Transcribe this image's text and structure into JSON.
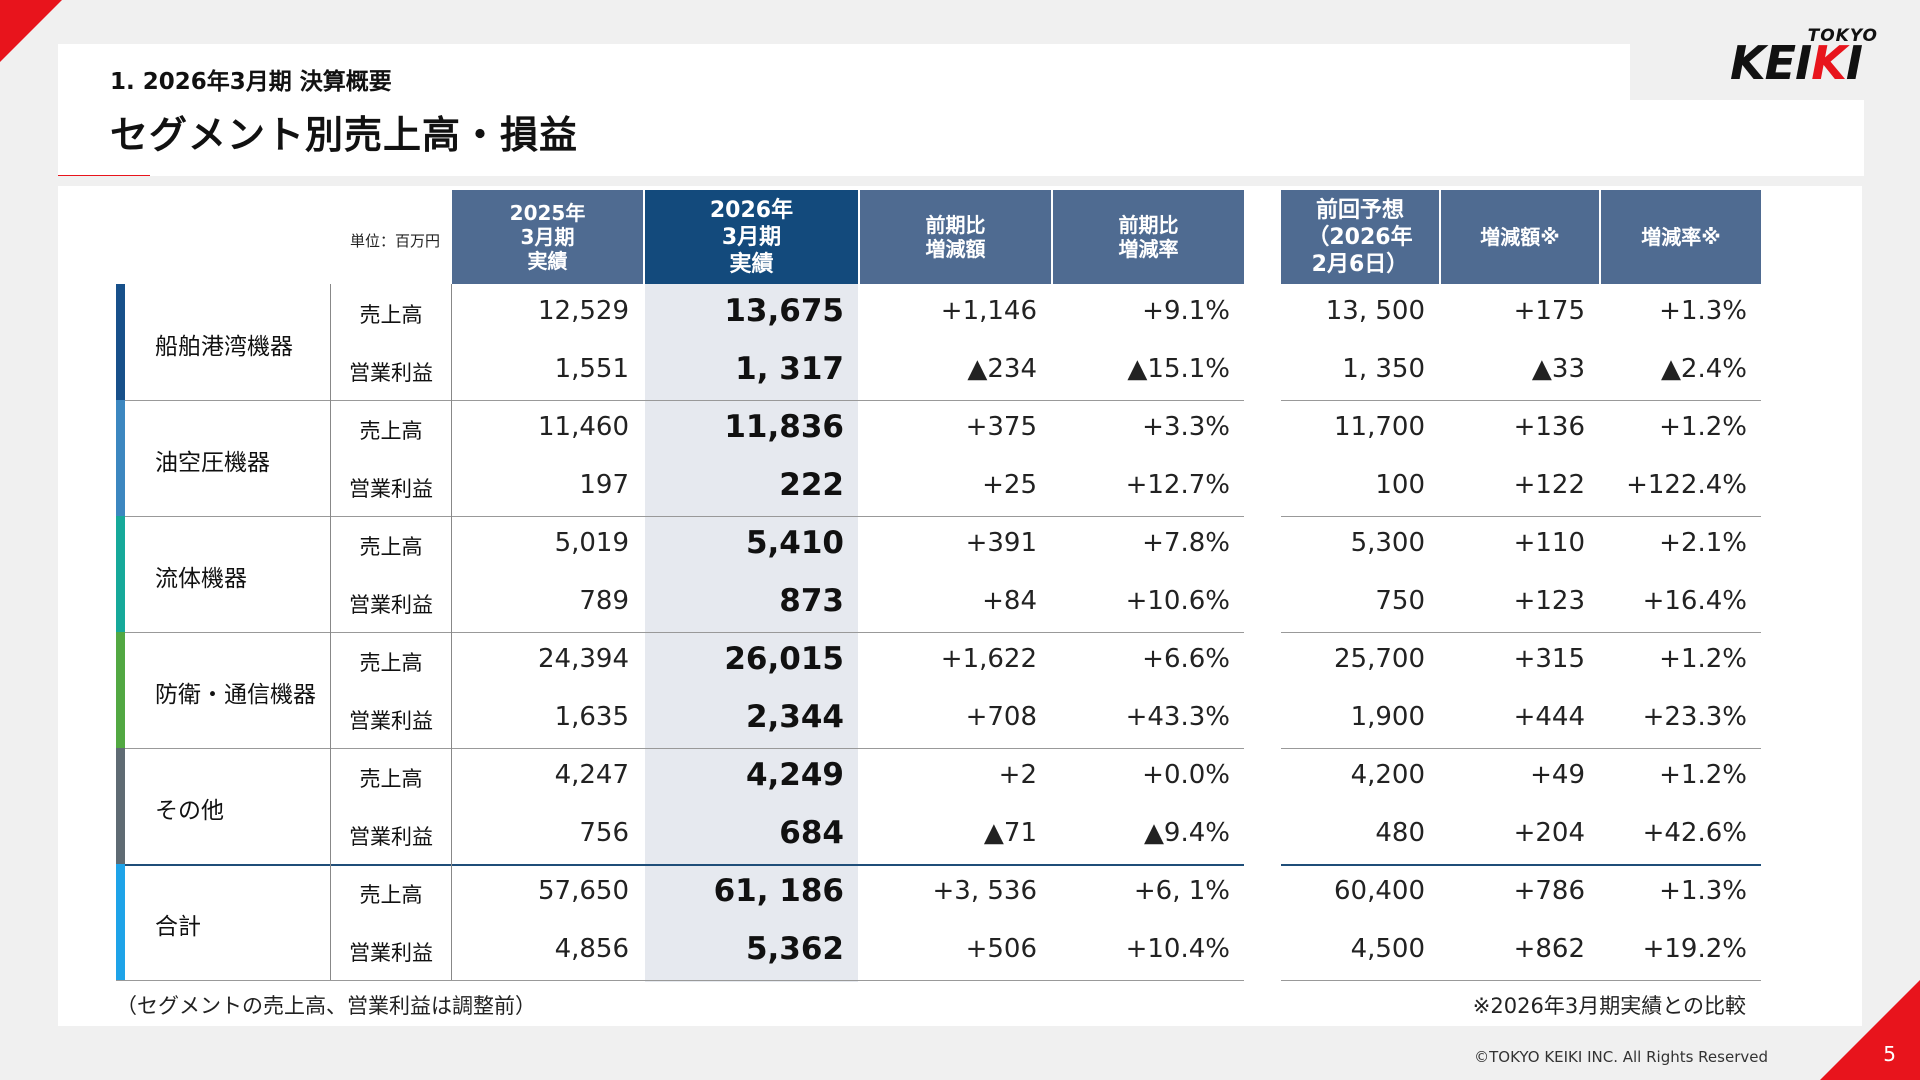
{
  "header": {
    "subtitle": "1. 2026年3月期 決算概要",
    "title": "セグメント別売上高・損益"
  },
  "logo": {
    "top": "TOKYO",
    "main_black": "KEI",
    "main_red": "K",
    "main_end": "I"
  },
  "table": {
    "unit": "単位：百万円",
    "columns": [
      "2025年\n3月期\n実績",
      "2026年\n3月期\n実績",
      "前期比\n増減額",
      "前期比\n増減率",
      "前回予想\n（2026年\n2月6日）",
      "増減額※",
      "増減率※"
    ],
    "metric_labels": [
      "売上高",
      "営業利益"
    ],
    "segments": [
      {
        "name": "船舶港湾機器",
        "color": "#17508a",
        "sales": [
          "12,529",
          "13,675",
          "+1,146",
          "+9.1%",
          "13, 500",
          "+175",
          "+1.3%"
        ],
        "profit": [
          "1,551",
          "1, 317",
          "▲234",
          "▲15.1%",
          "1, 350",
          "▲33",
          "▲2.4%"
        ]
      },
      {
        "name": "油空圧機器",
        "color": "#3c87c0",
        "sales": [
          "11,460",
          "11,836",
          "+375",
          "+3.3%",
          "11,700",
          "+136",
          "+1.2%"
        ],
        "profit": [
          "197",
          "222",
          "+25",
          "+12.7%",
          "100",
          "+122",
          "+122.4%"
        ]
      },
      {
        "name": "流体機器",
        "color": "#16a99a",
        "sales": [
          "5,019",
          "5,410",
          "+391",
          "+7.8%",
          "5,300",
          "+110",
          "+2.1%"
        ],
        "profit": [
          "789",
          "873",
          "+84",
          "+10.6%",
          "750",
          "+123",
          "+16.4%"
        ]
      },
      {
        "name": "防衛・通信機器",
        "color": "#52a842",
        "sales": [
          "24,394",
          "26,015",
          "+1,622",
          "+6.6%",
          "25,700",
          "+315",
          "+1.2%"
        ],
        "profit": [
          "1,635",
          "2,344",
          "+708",
          "+43.3%",
          "1,900",
          "+444",
          "+23.3%"
        ]
      },
      {
        "name": "その他",
        "color": "#5f6b73",
        "sales": [
          "4,247",
          "4,249",
          "+2",
          "+0.0%",
          "4,200",
          "+49",
          "+1.2%"
        ],
        "profit": [
          "756",
          "684",
          "▲71",
          "▲9.4%",
          "480",
          "+204",
          "+42.6%"
        ]
      },
      {
        "name": "合計",
        "color": "#1ea3e8",
        "sales": [
          "57,650",
          "61, 186",
          "+3, 536",
          "+6, 1%",
          "60,400",
          "+786",
          "+1.3%"
        ],
        "profit": [
          "4,856",
          "5,362",
          "+506",
          "+10.4%",
          "4,500",
          "+862",
          "+19.2%"
        ]
      }
    ]
  },
  "footer": {
    "note_left": "（セグメントの売上高、営業利益は調整前）",
    "note_right": "※2026年3月期実績との比較",
    "copyright": "©TOKYO KEIKI INC. All Rights Reserved",
    "page": "5"
  }
}
